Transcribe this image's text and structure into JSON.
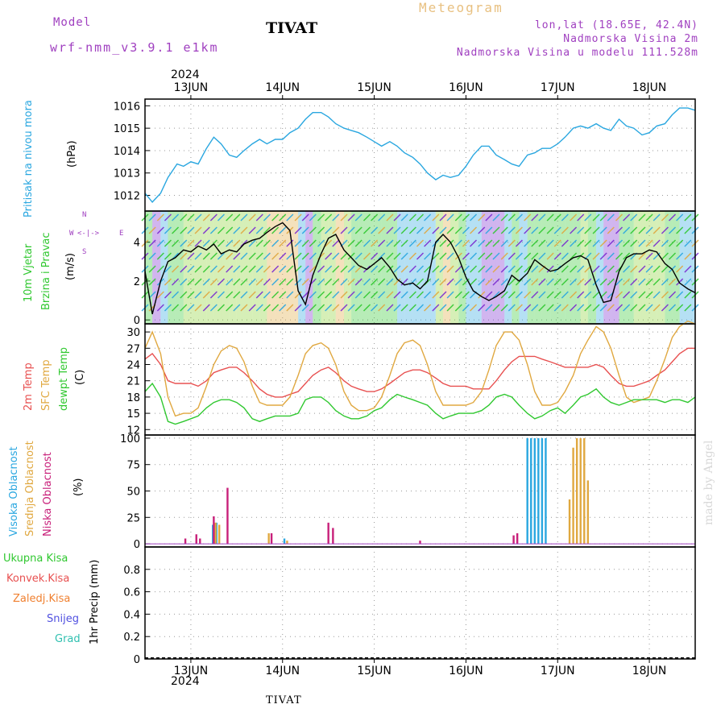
{
  "header": {
    "model_label": "Model",
    "model_name": "wrf-nmm_v3.9.1 e1km",
    "station": "TIVAT",
    "product": "Meteogram",
    "lonlat": "lon,lat (18.65E, 42.4N)",
    "elevation": "Nadmorska Visina 2m",
    "model_elevation": "Nadmorska Visina u modelu 111.528m",
    "footer_station": "TIVAT",
    "credit": "made by Angel"
  },
  "colors": {
    "pressure": "#2aa7e0",
    "temp2m": "#e85050",
    "sfc_temp": "#e0a840",
    "dewpt": "#30c830",
    "high_cloud": "#2aa7e0",
    "mid_cloud": "#e0a840",
    "low_cloud": "#c8207a",
    "wind_label": "#30c830",
    "compass": "#a040c0"
  },
  "chart_data": {
    "type": "line",
    "time_axis": {
      "year": "2024",
      "date_labels": [
        "13JUN",
        "14JUN",
        "15JUN",
        "16JUN",
        "17JUN",
        "18JUN"
      ],
      "x_range_days": [
        12.5,
        18.5
      ]
    },
    "panels": [
      {
        "id": "pressure",
        "ylabel_lines": [
          "Pritisak na nivou mora"
        ],
        "unit": "(hPa)",
        "yticks": [
          1012,
          1013,
          1014,
          1015,
          1016
        ],
        "ylim": [
          1011.3,
          1016.3
        ],
        "series": [
          {
            "x": [
              12.5,
              12.58,
              12.67,
              12.75,
              12.85,
              12.92,
              13.0,
              13.08,
              13.17,
              13.25,
              13.33,
              13.42,
              13.5,
              13.58,
              13.67,
              13.75,
              13.83,
              13.92,
              14.0,
              14.08,
              14.17,
              14.25,
              14.33,
              14.42,
              14.5,
              14.58,
              14.67,
              14.75,
              14.83,
              14.92,
              15.0,
              15.08,
              15.17,
              15.25,
              15.33,
              15.42,
              15.5,
              15.58,
              15.67,
              15.75,
              15.83,
              15.92,
              16.0,
              16.08,
              16.17,
              16.25,
              16.33,
              16.42,
              16.5,
              16.58,
              16.67,
              16.75,
              16.83,
              16.92,
              17.0,
              17.08,
              17.17,
              17.25,
              17.33,
              17.42,
              17.5,
              17.58,
              17.67,
              17.75,
              17.83,
              17.92,
              18.0,
              18.08,
              18.17,
              18.25,
              18.33,
              18.42,
              18.5
            ],
            "y": [
              1012.1,
              1011.7,
              1012.1,
              1012.8,
              1013.4,
              1013.3,
              1013.5,
              1013.4,
              1014.1,
              1014.6,
              1014.3,
              1013.8,
              1013.7,
              1014.0,
              1014.3,
              1014.5,
              1014.3,
              1014.5,
              1014.5,
              1014.8,
              1015.0,
              1015.4,
              1015.7,
              1015.7,
              1015.5,
              1015.2,
              1015.0,
              1014.9,
              1014.8,
              1014.6,
              1014.4,
              1014.2,
              1014.4,
              1014.2,
              1013.9,
              1013.7,
              1013.4,
              1013.0,
              1012.7,
              1012.9,
              1012.8,
              1012.9,
              1013.3,
              1013.8,
              1014.2,
              1014.2,
              1013.8,
              1013.6,
              1013.4,
              1013.3,
              1013.8,
              1013.9,
              1014.1,
              1014.1,
              1014.3,
              1014.6,
              1015.0,
              1015.1,
              1015.0,
              1015.2,
              1015.0,
              1014.9,
              1015.4,
              1015.1,
              1015.0,
              1014.7,
              1014.8,
              1015.1,
              1015.2,
              1015.6,
              1015.9,
              1015.9,
              1015.8
            ]
          }
        ]
      },
      {
        "id": "wind",
        "ylabel_lines": [
          "10m Vjetar",
          "Brzina i Pravac"
        ],
        "unit": "(m/s)",
        "yticks": [
          0,
          2,
          4
        ],
        "ylim": [
          -0.2,
          5.6
        ],
        "compass": {
          "n": "N",
          "s": "S",
          "e": "E",
          "w": "W"
        },
        "series": [
          {
            "x": [
              12.5,
              12.58,
              12.67,
              12.75,
              12.83,
              12.92,
              13.0,
              13.08,
              13.17,
              13.25,
              13.33,
              13.42,
              13.5,
              13.58,
              13.67,
              13.75,
              13.83,
              13.92,
              14.0,
              14.08,
              14.17,
              14.25,
              14.33,
              14.42,
              14.5,
              14.58,
              14.67,
              14.75,
              14.83,
              14.92,
              15.0,
              15.08,
              15.17,
              15.25,
              15.33,
              15.42,
              15.5,
              15.58,
              15.67,
              15.75,
              15.83,
              15.92,
              16.0,
              16.08,
              16.17,
              16.25,
              16.33,
              16.42,
              16.5,
              16.58,
              16.67,
              16.75,
              16.83,
              16.92,
              17.0,
              17.08,
              17.17,
              17.25,
              17.33,
              17.42,
              17.5,
              17.58,
              17.67,
              17.75,
              17.83,
              17.92,
              18.0,
              18.08,
              18.17,
              18.25,
              18.33,
              18.42,
              18.5
            ],
            "y": [
              2.5,
              0.3,
              2.0,
              3.0,
              3.2,
              3.6,
              3.5,
              3.8,
              3.6,
              3.9,
              3.4,
              3.6,
              3.5,
              3.9,
              4.1,
              4.2,
              4.5,
              4.8,
              5.0,
              4.6,
              1.5,
              0.8,
              2.3,
              3.4,
              4.2,
              4.4,
              3.6,
              3.2,
              2.8,
              2.6,
              2.9,
              3.2,
              2.7,
              2.1,
              1.8,
              1.9,
              1.6,
              2.0,
              4.0,
              4.4,
              4.0,
              3.2,
              2.2,
              1.5,
              1.2,
              1.0,
              1.2,
              1.5,
              2.3,
              2.0,
              2.4,
              3.1,
              2.8,
              2.5,
              2.6,
              2.9,
              3.2,
              3.3,
              3.1,
              1.8,
              0.9,
              1.0,
              2.5,
              3.2,
              3.4,
              3.4,
              3.6,
              3.5,
              2.9,
              2.6,
              1.9,
              1.6,
              1.4
            ]
          }
        ]
      },
      {
        "id": "temperature",
        "ylabel_lines": [
          "2m Temp",
          "SFC Temp",
          "dewpt Temp"
        ],
        "unit": "(C)",
        "yticks": [
          12,
          15,
          18,
          21,
          24,
          27,
          30
        ],
        "ylim": [
          11,
          31.5
        ],
        "series": [
          {
            "name": "2m Temp",
            "x": [
              12.5,
              12.58,
              12.67,
              12.75,
              12.83,
              12.92,
              13.0,
              13.08,
              13.17,
              13.25,
              13.33,
              13.42,
              13.5,
              13.58,
              13.67,
              13.75,
              13.83,
              13.92,
              14.0,
              14.08,
              14.17,
              14.25,
              14.33,
              14.42,
              14.5,
              14.58,
              14.67,
              14.75,
              14.83,
              14.92,
              15.0,
              15.08,
              15.17,
              15.25,
              15.33,
              15.42,
              15.5,
              15.58,
              15.67,
              15.75,
              15.83,
              15.92,
              16.0,
              16.08,
              16.17,
              16.25,
              16.33,
              16.42,
              16.5,
              16.58,
              16.67,
              16.75,
              16.83,
              16.92,
              17.0,
              17.08,
              17.17,
              17.25,
              17.33,
              17.42,
              17.5,
              17.58,
              17.67,
              17.75,
              17.83,
              17.92,
              18.0,
              18.08,
              18.17,
              18.25,
              18.33,
              18.42,
              18.5
            ],
            "y": [
              25.0,
              26.0,
              24.0,
              21.0,
              20.5,
              20.5,
              20.5,
              20.0,
              21.0,
              22.5,
              23.0,
              23.5,
              23.5,
              22.5,
              21.0,
              19.5,
              18.5,
              18.0,
              18.0,
              18.5,
              19.0,
              20.5,
              22.0,
              23.0,
              23.5,
              22.5,
              21.0,
              20.0,
              19.5,
              19.0,
              19.0,
              19.5,
              20.5,
              21.5,
              22.5,
              23.0,
              23.0,
              22.5,
              21.5,
              20.5,
              20.0,
              20.0,
              20.0,
              19.5,
              19.5,
              19.5,
              21.0,
              23.0,
              24.5,
              25.5,
              25.5,
              25.5,
              25.0,
              24.5,
              24.0,
              23.5,
              23.5,
              23.5,
              23.5,
              24.0,
              23.5,
              22.0,
              20.5,
              20.0,
              20.0,
              20.5,
              21.0,
              22.0,
              23.0,
              24.5,
              26.0,
              27.0,
              27.0
            ]
          },
          {
            "name": "SFC Temp",
            "x": [
              12.5,
              12.58,
              12.67,
              12.75,
              12.83,
              12.92,
              13.0,
              13.08,
              13.17,
              13.25,
              13.33,
              13.42,
              13.5,
              13.58,
              13.67,
              13.75,
              13.83,
              13.92,
              14.0,
              14.08,
              14.17,
              14.25,
              14.33,
              14.42,
              14.5,
              14.58,
              14.67,
              14.75,
              14.83,
              14.92,
              15.0,
              15.08,
              15.17,
              15.25,
              15.33,
              15.42,
              15.5,
              15.58,
              15.67,
              15.75,
              15.83,
              15.92,
              16.0,
              16.08,
              16.17,
              16.25,
              16.33,
              16.42,
              16.5,
              16.58,
              16.67,
              16.75,
              16.83,
              16.92,
              17.0,
              17.08,
              17.17,
              17.25,
              17.33,
              17.42,
              17.5,
              17.58,
              17.67,
              17.75,
              17.83,
              17.92,
              18.0,
              18.08,
              18.17,
              18.25,
              18.33,
              18.42,
              18.5
            ],
            "y": [
              27.0,
              30.0,
              26.0,
              18.0,
              14.5,
              15.0,
              15.0,
              16.0,
              20.0,
              24.0,
              26.5,
              27.5,
              27.0,
              24.5,
              20.0,
              17.0,
              16.5,
              16.5,
              16.5,
              18.0,
              22.0,
              26.0,
              27.5,
              28.0,
              27.0,
              24.0,
              19.0,
              16.5,
              15.5,
              15.5,
              16.0,
              18.0,
              22.0,
              26.0,
              28.0,
              28.5,
              27.5,
              24.0,
              19.0,
              16.5,
              16.5,
              16.5,
              16.5,
              17.0,
              19.0,
              23.0,
              27.5,
              30.0,
              30.0,
              28.5,
              24.0,
              19.0,
              16.5,
              16.5,
              17.0,
              19.0,
              22.0,
              26.0,
              28.5,
              31.0,
              30.0,
              27.0,
              22.0,
              18.0,
              17.0,
              17.5,
              18.0,
              21.0,
              25.0,
              29.0,
              31.0,
              32.0,
              31.5
            ]
          },
          {
            "name": "dewpt Temp",
            "x": [
              12.5,
              12.58,
              12.67,
              12.75,
              12.83,
              12.92,
              13.0,
              13.08,
              13.17,
              13.25,
              13.33,
              13.42,
              13.5,
              13.58,
              13.67,
              13.75,
              13.83,
              13.92,
              14.0,
              14.08,
              14.17,
              14.25,
              14.33,
              14.42,
              14.5,
              14.58,
              14.67,
              14.75,
              14.83,
              14.92,
              15.0,
              15.08,
              15.17,
              15.25,
              15.33,
              15.42,
              15.5,
              15.58,
              15.67,
              15.75,
              15.83,
              15.92,
              16.0,
              16.08,
              16.17,
              16.25,
              16.33,
              16.42,
              16.5,
              16.58,
              16.67,
              16.75,
              16.83,
              16.92,
              17.0,
              17.08,
              17.17,
              17.25,
              17.33,
              17.42,
              17.5,
              17.58,
              17.67,
              17.75,
              17.83,
              17.92,
              18.0,
              18.08,
              18.17,
              18.25,
              18.33,
              18.42,
              18.5
            ],
            "y": [
              19.0,
              20.5,
              18.0,
              13.5,
              13.0,
              13.5,
              14.0,
              14.5,
              16.0,
              17.0,
              17.5,
              17.5,
              17.0,
              16.0,
              14.0,
              13.5,
              14.0,
              14.5,
              14.5,
              14.5,
              15.0,
              17.5,
              18.0,
              18.0,
              17.0,
              15.5,
              14.5,
              14.0,
              14.0,
              14.5,
              15.5,
              16.0,
              17.5,
              18.5,
              18.0,
              17.5,
              17.0,
              16.5,
              15.0,
              14.0,
              14.5,
              15.0,
              15.0,
              15.0,
              15.5,
              16.5,
              18.0,
              18.5,
              18.0,
              16.5,
              15.0,
              14.0,
              14.5,
              15.5,
              16.0,
              15.0,
              16.5,
              18.0,
              18.5,
              19.5,
              18.0,
              17.0,
              16.5,
              17.0,
              17.5,
              17.5,
              17.5,
              17.5,
              17.0,
              17.5,
              17.5,
              17.0,
              18.0
            ]
          }
        ]
      },
      {
        "id": "cloud",
        "ylabel_lines": [
          "Visoka Oblacnost",
          "Srednja Oblacnost",
          "Niska Oblacnost"
        ],
        "unit": "(%)",
        "yticks": [
          0,
          25,
          50,
          75,
          100
        ],
        "ylim": [
          -3,
          103
        ],
        "bars": [
          {
            "name": "Visoka Oblacnost",
            "x": [
              13.24,
              13.28,
              14.02,
              16.67,
              16.71,
              16.75,
              16.79,
              16.83,
              16.87
            ],
            "y": [
              18,
              20,
              5,
              100,
              100,
              100,
              100,
              100,
              100
            ]
          },
          {
            "name": "Srednja Oblacnost",
            "x": [
              13.27,
              13.31,
              13.85,
              14.05,
              17.13,
              17.17,
              17.21,
              17.25,
              17.29,
              17.33
            ],
            "y": [
              20,
              18,
              10,
              3,
              42,
              91,
              100,
              100,
              100,
              60
            ]
          },
          {
            "name": "Niska Oblacnost",
            "x": [
              12.94,
              13.06,
              13.1,
              13.25,
              13.4,
              13.88,
              14.5,
              14.55,
              15.5,
              16.52,
              16.56
            ],
            "y": [
              5,
              9,
              5,
              26,
              53,
              10,
              20,
              15,
              3,
              8,
              10
            ]
          }
        ]
      },
      {
        "id": "precip",
        "ylabel_lines": [
          "Ukupna Kisa",
          "Konvek.Kisa",
          "Zaledj.Kisa",
          "Snijeg",
          "Grad"
        ],
        "unit": "1hr Precip (mm)",
        "yticks": [
          0,
          0.2,
          0.4,
          0.6,
          0.8
        ],
        "ylim": [
          0,
          1.0
        ],
        "series": []
      }
    ]
  }
}
